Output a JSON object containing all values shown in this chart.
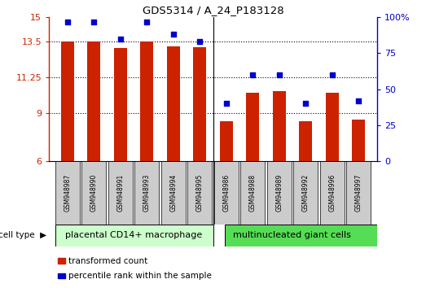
{
  "title": "GDS5314 / A_24_P183128",
  "samples": [
    "GSM948987",
    "GSM948990",
    "GSM948991",
    "GSM948993",
    "GSM948994",
    "GSM948995",
    "GSM948986",
    "GSM948988",
    "GSM948989",
    "GSM948992",
    "GSM948996",
    "GSM948997"
  ],
  "transformed_count": [
    13.5,
    13.5,
    13.1,
    13.5,
    13.2,
    13.15,
    8.5,
    10.3,
    10.4,
    8.5,
    10.3,
    8.6
  ],
  "percentile_rank": [
    97,
    97,
    85,
    97,
    88,
    83,
    40,
    60,
    60,
    40,
    60,
    42
  ],
  "group1_label": "placental CD14+ macrophage",
  "group2_label": "multinucleated giant cells",
  "group1_count": 6,
  "group2_count": 6,
  "ylim_left": [
    6,
    15
  ],
  "yticks_left": [
    6,
    9,
    11.25,
    13.5,
    15
  ],
  "ytick_labels_left": [
    "6",
    "9",
    "11.25",
    "13.5",
    "15"
  ],
  "ylim_right": [
    0,
    100
  ],
  "yticks_right": [
    0,
    25,
    50,
    75,
    100
  ],
  "ytick_labels_right": [
    "0",
    "25",
    "50",
    "75",
    "100%"
  ],
  "bar_color": "#cc2200",
  "dot_color": "#0000cc",
  "group1_bg": "#ccffcc",
  "group2_bg": "#55dd55",
  "header_bg": "#cccccc",
  "legend_bar_label": "transformed count",
  "legend_dot_label": "percentile rank within the sample",
  "grid_yticks": [
    9,
    11.25,
    13.5
  ],
  "bar_width": 0.5
}
